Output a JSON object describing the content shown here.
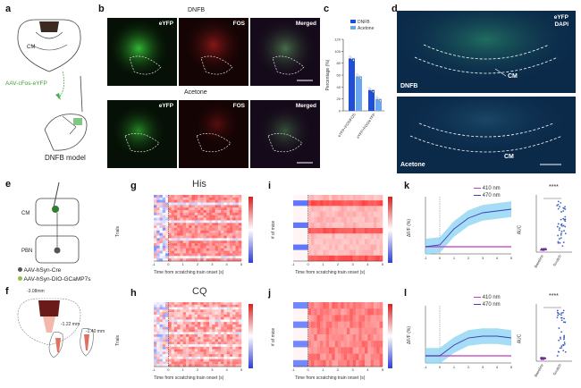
{
  "panels": {
    "a": "a",
    "b": "b",
    "c": "c",
    "d": "d",
    "e": "e",
    "f": "f",
    "g": "g",
    "h": "h",
    "i": "i",
    "j": "j",
    "k": "k",
    "l": "l"
  },
  "panel_a": {
    "region_label": "CM",
    "virus": "AAV-cFos-eYFP",
    "model": "DNFB model"
  },
  "panel_b": {
    "row1_title": "DNFB",
    "row2_title": "Acetone",
    "cols": [
      "eYFP",
      "FOS",
      "Merged"
    ]
  },
  "panel_d": {
    "tag1": "eYFP",
    "tag2": "DAPI",
    "row1_label": "DNFB",
    "row2_label": "Acetone",
    "region": "CM"
  },
  "panel_e": {
    "site1": "CM",
    "site2": "PBN",
    "virus1": "AAV-hSyn-Cre",
    "virus2": "AAV-hSyn-DIO-GCaMP7s"
  },
  "panel_f": {
    "coords": [
      "-3.08mm",
      "-1.22 mm",
      "-1.40 mm"
    ]
  },
  "panel_g": {
    "title": "His",
    "ylabel": "Trials",
    "xlabel": "Time from scratching train onset (s)"
  },
  "panel_h": {
    "title": "CQ",
    "ylabel": "Trials",
    "xlabel": "Time from scratching train onset (s)"
  },
  "panel_i": {
    "ylabel": "# of mice",
    "xlabel": "Time from scratching train onset (s)"
  },
  "panel_j": {
    "ylabel": "# of mice",
    "xlabel": "Time from scratching train onset (s)"
  },
  "panel_k": {
    "legend": [
      "410 nm",
      "470 nm"
    ],
    "ylabel": "ΔF/F (%)",
    "auc_label": "AUC",
    "sig": "****",
    "cats": [
      "Baseline",
      "Scratch"
    ]
  },
  "panel_l": {
    "legend": [
      "410 nm",
      "470 nm"
    ],
    "ylabel": "ΔF/F (%)",
    "auc_label": "AUC",
    "sig": "****",
    "cats": [
      "Baseline",
      "Scratch"
    ]
  },
  "colors": {
    "dnfb": "#1f4fd6",
    "acetone": "#6aa6f0",
    "trace470": "#3a3fb0",
    "trace410": "#c040c0",
    "shade": "#8fd3f4"
  },
  "chart_data": [
    {
      "type": "bar",
      "panel": "c",
      "ylabel": "Percentage (%)",
      "categories": [
        "eYFP+FOS/FOS",
        "eYFP+FOS/eYFP"
      ],
      "series": [
        {
          "name": "DNFB",
          "values": [
            88,
            35
          ]
        },
        {
          "name": "Acetone",
          "values": [
            58,
            20
          ]
        }
      ],
      "ylim": [
        0,
        120
      ],
      "ticks": [
        0,
        20,
        40,
        60,
        80,
        100,
        120
      ],
      "legend": "top-right"
    },
    {
      "type": "line",
      "panel": "k",
      "ylabel": "ΔF/F (%)",
      "x": [
        -1,
        0,
        1,
        2,
        3,
        4,
        5
      ],
      "series": [
        {
          "name": "410 nm",
          "values": [
            0,
            0,
            0,
            0,
            0,
            0,
            0
          ]
        },
        {
          "name": "470 nm",
          "values": [
            0,
            0.5,
            5,
            8,
            9.5,
            10,
            10.5
          ]
        }
      ]
    },
    {
      "type": "line",
      "panel": "l",
      "ylabel": "ΔF/F (%)",
      "x": [
        -1,
        0,
        1,
        2,
        3,
        4,
        5
      ],
      "series": [
        {
          "name": "410 nm",
          "values": [
            0,
            0,
            0,
            0,
            0,
            0,
            0
          ]
        },
        {
          "name": "470 nm",
          "values": [
            0,
            0,
            3,
            5,
            5.5,
            5.5,
            5
          ]
        }
      ]
    }
  ]
}
